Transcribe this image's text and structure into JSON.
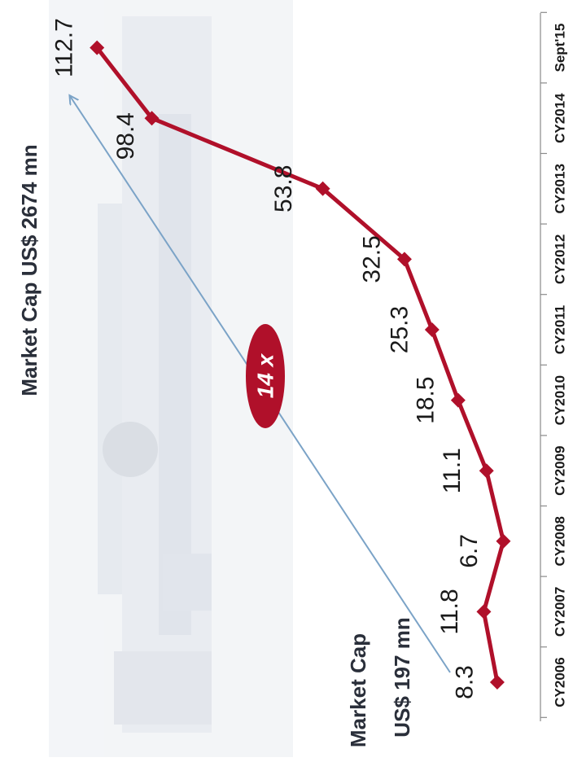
{
  "chart_data": {
    "type": "line",
    "categories": [
      "CY2006",
      "CY2007",
      "CY2008",
      "CY2009",
      "CY2010",
      "CY2011",
      "CY2012",
      "CY2013",
      "CY2014",
      "Sept'15"
    ],
    "values": [
      8.3,
      11.8,
      6.7,
      11.1,
      18.5,
      25.3,
      32.5,
      53.8,
      98.4,
      112.7
    ],
    "ylim": [
      0,
      120
    ],
    "grid": false,
    "colors": {
      "series": "#b0102a",
      "arrow": "#7ba3c7",
      "badge": "#b0102a"
    }
  },
  "annotations": {
    "start_label_line1": "Market Cap",
    "start_label_line2": "US$ 197 mn",
    "end_label": "Market Cap US$ 2674 mn",
    "growth_badge": "14 x"
  }
}
